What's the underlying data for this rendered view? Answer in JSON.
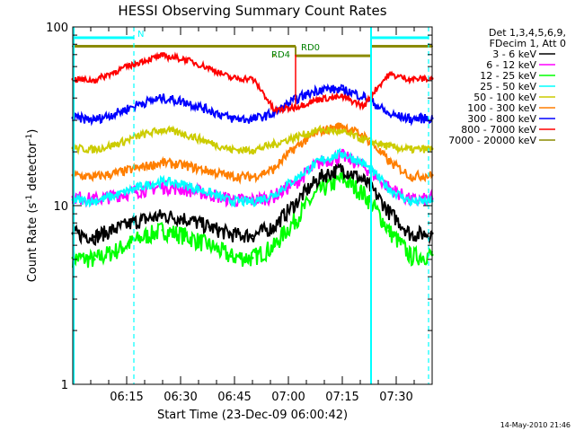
{
  "chart_data": {
    "type": "line",
    "title": "HESSI Observing Summary Count Rates",
    "xlabel": "Start Time (23-Dec-09 06:00:42)",
    "ylabel": "Count Rate (s",
    "ylabel_sup": "-1",
    "ylabel_tail": " detector",
    "ylabel_sup2": "-1",
    "ylabel_close": ")",
    "yscale": "log",
    "xlim_minutes": [
      0,
      100
    ],
    "ylim": [
      1,
      100
    ],
    "ytick_labels": [
      "1",
      "10",
      "100"
    ],
    "xtick_minutes": [
      15,
      30,
      45,
      60,
      75,
      90
    ],
    "xtick_labels": [
      "06:15",
      "06:30",
      "06:45",
      "07:00",
      "07:15",
      "07:30"
    ],
    "legend": {
      "placement": "outside-right",
      "header1": "Det 1,3,4,5,6,9,",
      "header2": "FDecim 1, Att 0"
    },
    "series": [
      {
        "name": "3 - 6 keV",
        "color": "#000000",
        "values": [
          7.0,
          6.7,
          7.4,
          8.3,
          8.8,
          8.5,
          7.6,
          6.9,
          6.8,
          7.6,
          10.3,
          14.5,
          16.2,
          13.8,
          9.2,
          6.9,
          7.0
        ]
      },
      {
        "name": "6 - 12 keV",
        "color": "#ff00ff",
        "values": [
          11.2,
          10.8,
          11.4,
          12.2,
          12.8,
          12.4,
          11.6,
          10.8,
          10.7,
          11.3,
          13.4,
          17.6,
          19.0,
          16.6,
          12.6,
          10.7,
          10.9
        ]
      },
      {
        "name": "12 - 25 keV",
        "color": "#00ff00",
        "values": [
          5.1,
          5.0,
          5.6,
          6.6,
          7.3,
          6.8,
          6.0,
          5.2,
          5.1,
          5.9,
          8.3,
          12.3,
          14.2,
          11.6,
          7.2,
          5.2,
          5.3
        ]
      },
      {
        "name": "25 - 50 keV",
        "color": "#00ffff",
        "values": [
          10.8,
          10.6,
          11.4,
          12.8,
          13.7,
          13.1,
          11.8,
          10.6,
          10.5,
          11.5,
          14.1,
          17.9,
          19.6,
          17.1,
          12.4,
          10.5,
          10.6
        ]
      },
      {
        "name": "50 - 100 keV",
        "color": "#cccc00",
        "values": [
          21.0,
          20.6,
          22.0,
          24.8,
          26.6,
          25.2,
          22.6,
          20.6,
          20.4,
          22.0,
          24.2,
          26.6,
          25.8,
          23.4,
          21.4,
          20.6,
          20.8
        ]
      },
      {
        "name": "100 - 300 keV",
        "color": "#ff7f00",
        "values": [
          14.8,
          14.5,
          15.2,
          16.4,
          17.4,
          16.8,
          15.6,
          14.6,
          14.5,
          16.0,
          21.2,
          26.2,
          28.0,
          24.4,
          17.6,
          14.6,
          14.8
        ]
      },
      {
        "name": "300 - 800 keV",
        "color": "#0000ff",
        "values": [
          31.0,
          30.2,
          32.8,
          37.4,
          40.0,
          38.2,
          34.2,
          30.8,
          30.4,
          32.8,
          39.4,
          45.0,
          44.6,
          40.8,
          32.4,
          30.6,
          30.8
        ]
      },
      {
        "name": "800 - 7000 keV",
        "color": "#ff0000",
        "values": [
          51.0,
          50.2,
          56.4,
          64.2,
          69.0,
          66.0,
          58.8,
          51.8,
          51.2,
          34.0,
          35.6,
          39.6,
          40.6,
          36.0,
          54.2,
          51.0,
          51.4
        ]
      },
      {
        "name": "7000 - 20000 keV",
        "color": "#8b8b00",
        "values": [
          78,
          78,
          78,
          78,
          78,
          78,
          78,
          78,
          78,
          69,
          69,
          69,
          69,
          69,
          78,
          78,
          78
        ]
      }
    ],
    "x_minutes": [
      0,
      6,
      12,
      19,
      25,
      31,
      38,
      44,
      50,
      56,
      62,
      69,
      75,
      81,
      88,
      94,
      100
    ],
    "markers": {
      "cyan_solid_x_minutes": [
        0,
        83
      ],
      "cyan_dashed_x_minutes": [
        17,
        99
      ],
      "cyan_top_bars": [
        [
          0,
          17
        ],
        [
          83,
          99
        ]
      ],
      "cyan_label": "N",
      "green_labels": [
        "RD4",
        "RD0"
      ],
      "green_levels": [
        78,
        69
      ],
      "red_spike_x_minutes": [
        62,
        83
      ]
    },
    "timestamp": "14-May-2010 21:46"
  },
  "colors": {
    "cyan": "#00ffff",
    "dark_green": "#008000"
  }
}
